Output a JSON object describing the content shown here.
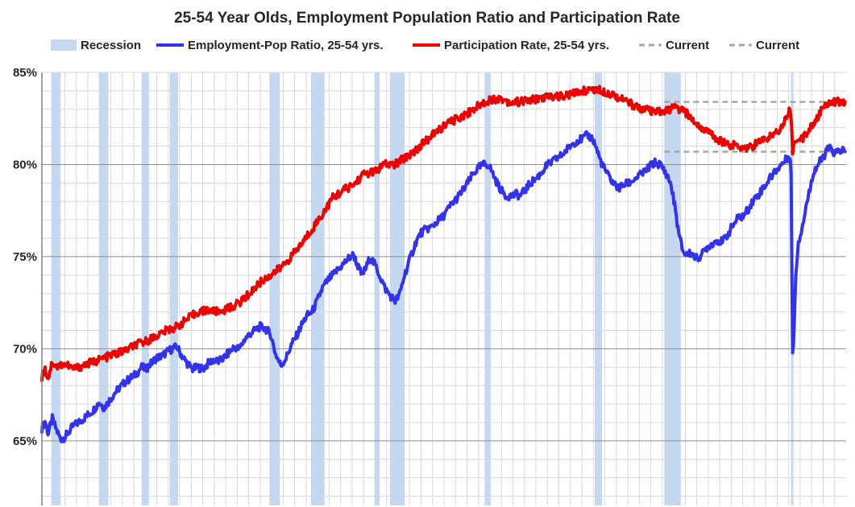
{
  "chart_data": {
    "type": "line",
    "title": "25-54 Year Olds, Employment Population Ratio and Participation Rate",
    "xlabel": "",
    "ylabel": "",
    "x_range": [
      1948.0,
      2025.4
    ],
    "ylim": [
      61.5,
      85
    ],
    "y_ticks": [
      65,
      70,
      75,
      80,
      85
    ],
    "y_tick_labels": [
      "65%",
      "70%",
      "75%",
      "80%",
      "85%"
    ],
    "grid": true,
    "legend_position": "top",
    "legend": [
      {
        "label": "Recession",
        "type": "band",
        "color": "#c5d8f0"
      },
      {
        "label": "Employment-Pop Ratio, 25-54 yrs.",
        "type": "line",
        "color": "#3333ee"
      },
      {
        "label": "Participation Rate, 25-54 yrs.",
        "type": "line",
        "color": "#ee0000"
      },
      {
        "label": "Current",
        "type": "dashed",
        "color": "#a6a6a6"
      },
      {
        "label": "Current",
        "type": "dashed",
        "color": "#a6a6a6"
      }
    ],
    "recessions": [
      [
        1948.9,
        1949.8
      ],
      [
        1953.5,
        1954.4
      ],
      [
        1957.6,
        1958.3
      ],
      [
        1960.3,
        1961.1
      ],
      [
        1969.9,
        1970.9
      ],
      [
        1973.9,
        1975.2
      ],
      [
        1980.0,
        1980.5
      ],
      [
        1981.5,
        1982.9
      ],
      [
        1990.6,
        1991.2
      ],
      [
        2001.2,
        2001.9
      ],
      [
        2007.9,
        2009.5
      ],
      [
        2020.1,
        2020.3
      ]
    ],
    "current_lines": [
      {
        "label": "Current",
        "value": 83.4,
        "from": 2007.9,
        "to": 2025.4
      },
      {
        "label": "Current",
        "value": 80.7,
        "from": 2007.9,
        "to": 2025.4
      }
    ],
    "series": [
      {
        "name": "Employment-Pop Ratio, 25-54 yrs.",
        "color": "#3333ee",
        "points": [
          [
            1948.0,
            65.7
          ],
          [
            1948.3,
            66.1
          ],
          [
            1948.6,
            65.4
          ],
          [
            1949.0,
            66.2
          ],
          [
            1949.4,
            65.6
          ],
          [
            1949.8,
            65.1
          ],
          [
            1950.2,
            65.2
          ],
          [
            1950.6,
            65.5
          ],
          [
            1951.0,
            65.8
          ],
          [
            1952.0,
            66.2
          ],
          [
            1953.0,
            66.7
          ],
          [
            1953.5,
            67.1
          ],
          [
            1954.0,
            66.8
          ],
          [
            1954.5,
            67.2
          ],
          [
            1955.0,
            67.6
          ],
          [
            1956.0,
            68.2
          ],
          [
            1957.0,
            68.6
          ],
          [
            1957.6,
            69.0
          ],
          [
            1958.0,
            68.9
          ],
          [
            1958.5,
            69.2
          ],
          [
            1959.0,
            69.5
          ],
          [
            1959.5,
            69.6
          ],
          [
            1960.0,
            69.8
          ],
          [
            1960.5,
            70.0
          ],
          [
            1961.0,
            70.1
          ],
          [
            1961.5,
            69.6
          ],
          [
            1962.0,
            69.2
          ],
          [
            1962.5,
            68.9
          ],
          [
            1963.0,
            69.0
          ],
          [
            1963.5,
            68.9
          ],
          [
            1964.0,
            69.2
          ],
          [
            1964.5,
            69.4
          ],
          [
            1965.0,
            69.3
          ],
          [
            1965.5,
            69.5
          ],
          [
            1966.0,
            69.8
          ],
          [
            1966.5,
            70.1
          ],
          [
            1967.0,
            70.0
          ],
          [
            1967.5,
            70.5
          ],
          [
            1968.0,
            70.8
          ],
          [
            1968.5,
            71.0
          ],
          [
            1969.0,
            71.2
          ],
          [
            1969.5,
            71.1
          ],
          [
            1970.0,
            70.8
          ],
          [
            1970.5,
            69.7
          ],
          [
            1971.0,
            69.1
          ],
          [
            1971.5,
            69.5
          ],
          [
            1972.0,
            70.2
          ],
          [
            1972.5,
            70.7
          ],
          [
            1973.0,
            71.3
          ],
          [
            1973.5,
            71.8
          ],
          [
            1974.0,
            72.0
          ],
          [
            1974.5,
            72.6
          ],
          [
            1975.0,
            73.3
          ],
          [
            1975.5,
            73.7
          ],
          [
            1976.0,
            74.0
          ],
          [
            1976.5,
            74.3
          ],
          [
            1977.0,
            74.6
          ],
          [
            1977.5,
            74.9
          ],
          [
            1978.0,
            75.1
          ],
          [
            1978.4,
            74.5
          ],
          [
            1978.8,
            74.0
          ],
          [
            1979.2,
            74.4
          ],
          [
            1979.6,
            75.0
          ],
          [
            1980.0,
            74.6
          ],
          [
            1980.5,
            74.0
          ],
          [
            1981.0,
            73.3
          ],
          [
            1981.5,
            72.9
          ],
          [
            1982.0,
            72.6
          ],
          [
            1982.4,
            72.9
          ],
          [
            1982.9,
            74.0
          ],
          [
            1983.5,
            75.0
          ],
          [
            1984.0,
            75.8
          ],
          [
            1984.5,
            76.3
          ],
          [
            1985.0,
            76.5
          ],
          [
            1985.5,
            76.6
          ],
          [
            1986.0,
            76.9
          ],
          [
            1986.5,
            77.1
          ],
          [
            1987.0,
            77.5
          ],
          [
            1987.5,
            77.9
          ],
          [
            1988.0,
            78.2
          ],
          [
            1988.5,
            78.6
          ],
          [
            1989.0,
            79.0
          ],
          [
            1989.5,
            79.5
          ],
          [
            1990.0,
            79.8
          ],
          [
            1990.5,
            80.0
          ],
          [
            1991.0,
            80.0
          ],
          [
            1991.4,
            79.5
          ],
          [
            1991.8,
            79.0
          ],
          [
            1992.2,
            78.6
          ],
          [
            1992.7,
            78.3
          ],
          [
            1993.2,
            78.3
          ],
          [
            1993.7,
            78.4
          ],
          [
            1994.0,
            78.3
          ],
          [
            1994.5,
            78.6
          ],
          [
            1995.0,
            79.0
          ],
          [
            1995.5,
            79.2
          ],
          [
            1996.0,
            79.5
          ],
          [
            1996.5,
            79.9
          ],
          [
            1997.0,
            80.1
          ],
          [
            1997.5,
            80.3
          ],
          [
            1998.0,
            80.5
          ],
          [
            1998.5,
            80.8
          ],
          [
            1999.0,
            81.1
          ],
          [
            1999.5,
            81.3
          ],
          [
            2000.0,
            81.4
          ],
          [
            2000.5,
            81.6
          ],
          [
            2001.0,
            81.4
          ],
          [
            2001.3,
            81.0
          ],
          [
            2001.7,
            80.3
          ],
          [
            2002.0,
            79.9
          ],
          [
            2002.5,
            79.4
          ],
          [
            2003.0,
            79.0
          ],
          [
            2003.5,
            78.7
          ],
          [
            2004.0,
            78.9
          ],
          [
            2004.5,
            79.0
          ],
          [
            2005.0,
            79.2
          ],
          [
            2005.5,
            79.4
          ],
          [
            2006.0,
            79.6
          ],
          [
            2006.5,
            79.9
          ],
          [
            2007.0,
            80.1
          ],
          [
            2007.5,
            80.0
          ],
          [
            2008.0,
            79.6
          ],
          [
            2008.5,
            79.0
          ],
          [
            2008.9,
            77.8
          ],
          [
            2009.3,
            76.2
          ],
          [
            2009.7,
            75.3
          ],
          [
            2010.0,
            75.1
          ],
          [
            2010.5,
            75.2
          ],
          [
            2011.0,
            74.9
          ],
          [
            2011.5,
            75.1
          ],
          [
            2012.0,
            75.5
          ],
          [
            2012.5,
            75.7
          ],
          [
            2013.0,
            75.9
          ],
          [
            2013.5,
            75.8
          ],
          [
            2014.0,
            76.2
          ],
          [
            2014.5,
            76.7
          ],
          [
            2015.0,
            77.1
          ],
          [
            2015.5,
            77.2
          ],
          [
            2016.0,
            77.6
          ],
          [
            2016.5,
            78.1
          ],
          [
            2017.0,
            78.4
          ],
          [
            2017.5,
            78.8
          ],
          [
            2018.0,
            79.2
          ],
          [
            2018.5,
            79.6
          ],
          [
            2019.0,
            79.9
          ],
          [
            2019.5,
            80.2
          ],
          [
            2020.0,
            80.5
          ],
          [
            2020.1,
            79.5
          ],
          [
            2020.25,
            69.6
          ],
          [
            2020.4,
            71.2
          ],
          [
            2020.55,
            74.0
          ],
          [
            2020.8,
            75.8
          ],
          [
            2021.0,
            76.2
          ],
          [
            2021.3,
            77.0
          ],
          [
            2021.6,
            77.9
          ],
          [
            2021.9,
            78.6
          ],
          [
            2022.2,
            79.5
          ],
          [
            2022.5,
            79.8
          ],
          [
            2022.8,
            80.1
          ],
          [
            2023.1,
            80.3
          ],
          [
            2023.4,
            80.6
          ],
          [
            2023.7,
            80.9
          ],
          [
            2024.0,
            80.8
          ],
          [
            2024.3,
            80.6
          ],
          [
            2024.6,
            80.7
          ],
          [
            2025.0,
            80.8
          ],
          [
            2025.3,
            80.7
          ]
        ]
      },
      {
        "name": "Participation Rate, 25-54 yrs.",
        "color": "#ee0000",
        "points": [
          [
            1948.0,
            68.5
          ],
          [
            1948.3,
            68.9
          ],
          [
            1948.6,
            68.4
          ],
          [
            1949.0,
            69.3
          ],
          [
            1949.5,
            69.0
          ],
          [
            1950.0,
            69.2
          ],
          [
            1950.5,
            69.1
          ],
          [
            1951.0,
            68.9
          ],
          [
            1952.0,
            69.1
          ],
          [
            1953.0,
            69.3
          ],
          [
            1954.0,
            69.5
          ],
          [
            1955.0,
            69.7
          ],
          [
            1956.0,
            69.9
          ],
          [
            1957.0,
            70.2
          ],
          [
            1958.0,
            70.4
          ],
          [
            1959.0,
            70.7
          ],
          [
            1960.0,
            71.0
          ],
          [
            1961.0,
            71.2
          ],
          [
            1962.0,
            71.6
          ],
          [
            1963.0,
            72.0
          ],
          [
            1964.0,
            72.1
          ],
          [
            1965.0,
            72.0
          ],
          [
            1966.0,
            72.2
          ],
          [
            1967.0,
            72.5
          ],
          [
            1968.0,
            73.0
          ],
          [
            1969.0,
            73.6
          ],
          [
            1970.0,
            74.0
          ],
          [
            1971.0,
            74.4
          ],
          [
            1972.0,
            75.0
          ],
          [
            1973.0,
            75.7
          ],
          [
            1974.0,
            76.5
          ],
          [
            1975.0,
            77.3
          ],
          [
            1976.0,
            78.2
          ],
          [
            1977.0,
            78.6
          ],
          [
            1978.0,
            78.9
          ],
          [
            1979.0,
            79.5
          ],
          [
            1980.0,
            79.6
          ],
          [
            1981.0,
            80.0
          ],
          [
            1982.0,
            80.0
          ],
          [
            1983.0,
            80.4
          ],
          [
            1984.0,
            80.8
          ],
          [
            1985.0,
            81.3
          ],
          [
            1986.0,
            81.8
          ],
          [
            1987.0,
            82.2
          ],
          [
            1988.0,
            82.5
          ],
          [
            1989.0,
            82.8
          ],
          [
            1990.0,
            83.2
          ],
          [
            1991.0,
            83.5
          ],
          [
            1992.0,
            83.6
          ],
          [
            1993.0,
            83.4
          ],
          [
            1994.0,
            83.4
          ],
          [
            1995.0,
            83.5
          ],
          [
            1996.0,
            83.6
          ],
          [
            1997.0,
            83.7
          ],
          [
            1998.0,
            83.7
          ],
          [
            1999.0,
            83.8
          ],
          [
            2000.0,
            84.0
          ],
          [
            2001.0,
            84.1
          ],
          [
            2002.0,
            84.0
          ],
          [
            2003.0,
            83.8
          ],
          [
            2004.0,
            83.5
          ],
          [
            2005.0,
            83.2
          ],
          [
            2006.0,
            83.0
          ],
          [
            2007.0,
            82.8
          ],
          [
            2008.0,
            82.9
          ],
          [
            2009.0,
            83.1
          ],
          [
            2010.0,
            82.8
          ],
          [
            2011.0,
            82.2
          ],
          [
            2012.0,
            81.8
          ],
          [
            2013.0,
            81.4
          ],
          [
            2014.0,
            81.1
          ],
          [
            2015.0,
            81.0
          ],
          [
            2016.0,
            80.9
          ],
          [
            2017.0,
            81.2
          ],
          [
            2018.0,
            81.5
          ],
          [
            2019.0,
            81.9
          ],
          [
            2020.0,
            83.0
          ],
          [
            2020.15,
            82.3
          ],
          [
            2020.25,
            80.5
          ],
          [
            2020.4,
            81.4
          ],
          [
            2020.6,
            81.1
          ],
          [
            2021.0,
            81.3
          ],
          [
            2021.5,
            81.6
          ],
          [
            2022.0,
            82.1
          ],
          [
            2022.5,
            82.4
          ],
          [
            2023.0,
            82.9
          ],
          [
            2023.5,
            83.3
          ],
          [
            2024.0,
            83.5
          ],
          [
            2024.5,
            83.4
          ],
          [
            2025.0,
            83.4
          ],
          [
            2025.3,
            83.4
          ]
        ]
      }
    ]
  }
}
